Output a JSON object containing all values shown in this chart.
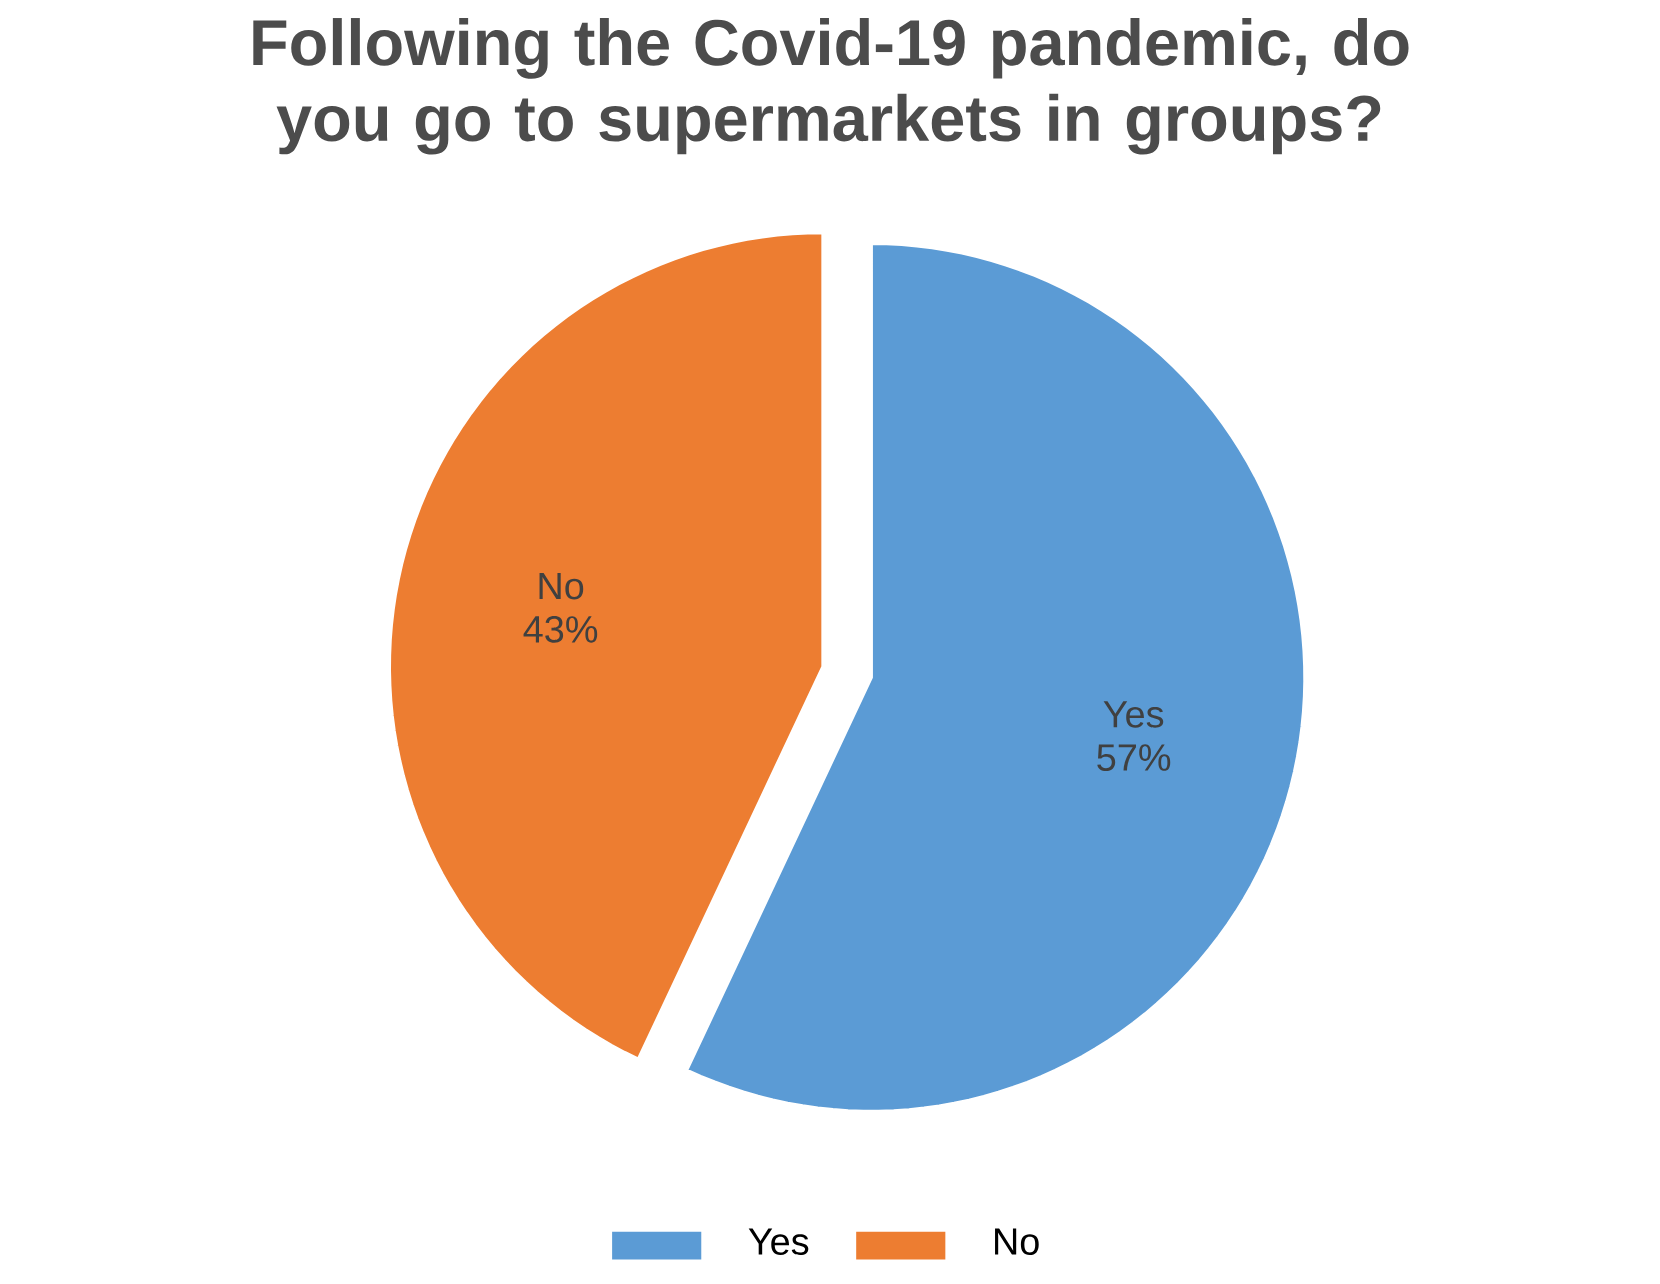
{
  "chart_data": {
    "type": "pie",
    "title": "Following the Covid-19 pandemic, do you go to supermarkets in groups?",
    "categories": [
      "Yes",
      "No"
    ],
    "values": [
      57,
      43
    ],
    "colors": [
      "#5b9bd5",
      "#ed7d31"
    ],
    "value_labels": [
      "57%",
      "43%"
    ],
    "legend": "bottom"
  }
}
